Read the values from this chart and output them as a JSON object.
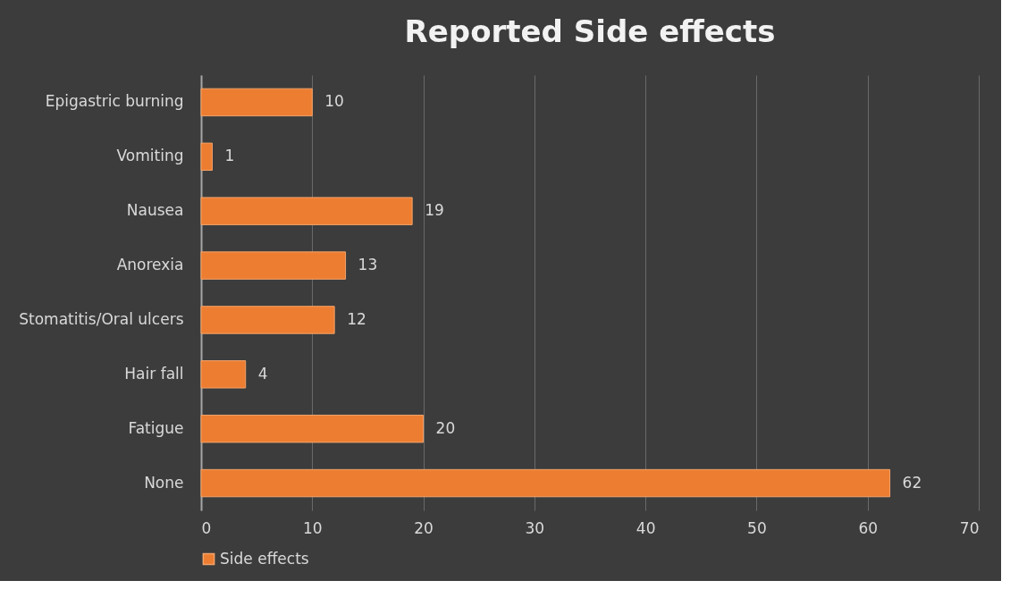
{
  "chart_data": {
    "type": "bar",
    "orientation": "horizontal",
    "title": "Reported Side effects",
    "categories": [
      "Epigastric burning",
      "Vomiting",
      "Nausea",
      "Anorexia",
      "Stomatitis/Oral ulcers",
      "Hair fall",
      "Fatigue",
      "None"
    ],
    "series": [
      {
        "name": "Side effects",
        "color": "#ed7d31",
        "values": [
          10,
          1,
          19,
          13,
          12,
          4,
          20,
          62
        ]
      }
    ],
    "xlim": [
      0,
      70
    ],
    "xticks": [
      0,
      10,
      20,
      30,
      40,
      50,
      60,
      70
    ],
    "grid": "x",
    "legend": "bottom",
    "data_labels": true
  }
}
